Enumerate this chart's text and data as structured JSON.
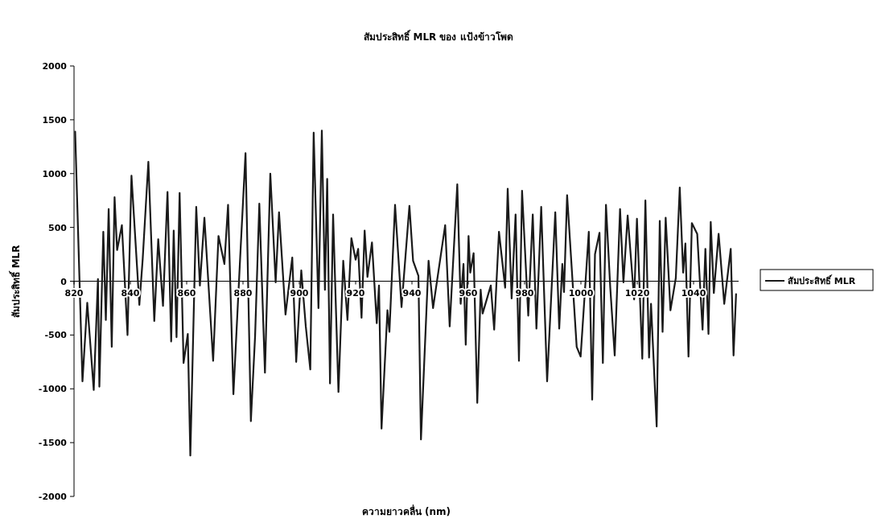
{
  "chart_data": {
    "type": "line",
    "title": "สัมประสิทธิ์ MLR ของ แป้งข้าวโพด",
    "xlabel": "ความยาวคลื่น (nm)",
    "ylabel": "สัมประสิทธิ์ MLR",
    "xlim": [
      820,
      1056
    ],
    "xticks": [
      820,
      840,
      860,
      880,
      900,
      920,
      940,
      960,
      980,
      1000,
      1020,
      1040
    ],
    "ylim": [
      -2000,
      2000
    ],
    "yticks": [
      -2000,
      -1500,
      -1000,
      -500,
      0,
      500,
      1000,
      1500,
      2000
    ],
    "legend": "right",
    "series": [
      {
        "name": "สัมประสิทธิ์ MLR",
        "color": "#1a1a1a",
        "x": [
          820.4,
          823,
          824.7,
          827,
          828.5,
          829,
          830.4,
          831.3,
          832.3,
          833.4,
          834.4,
          835.3,
          837,
          839,
          840.4,
          843.2,
          844.4,
          846.4,
          848.5,
          849.9,
          851.6,
          853.2,
          854.5,
          855.4,
          856.4,
          857.5,
          858.9,
          860.4,
          861.3,
          863.4,
          864.7,
          866.3,
          869.4,
          871.3,
          873.4,
          874.7,
          876.6,
          879,
          880.9,
          882.8,
          884.3,
          885.8,
          887.8,
          889.7,
          891.6,
          892.8,
          895.1,
          897.5,
          898.9,
          900.7,
          902.3,
          903.9,
          905.1,
          906.8,
          908,
          909.1,
          909.9,
          910.9,
          912,
          913.9,
          915.6,
          917.1,
          918.5,
          920,
          920.9,
          922.1,
          923.2,
          924.2,
          925.8,
          927.5,
          928.3,
          929.2,
          931.3,
          932,
          934,
          936.3,
          939.1,
          940.4,
          942.3,
          943.2,
          945.9,
          947.5,
          951.8,
          953.4,
          956.1,
          957.3,
          958.3,
          959.1,
          960.1,
          960.7,
          961.9,
          963.2,
          964.4,
          965.1,
          968,
          969.2,
          970.9,
          973.1,
          974,
          975.4,
          976.8,
          978,
          979.1,
          981.3,
          982.9,
          984.2,
          985.9,
          988,
          990.9,
          992.3,
          993.4,
          994,
          995.1,
          998.5,
          999.9,
          1002.8,
          1004,
          1005,
          1006.6,
          1007.8,
          1008.9,
          1010.4,
          1012,
          1013.9,
          1015.1,
          1016.6,
          1018.9,
          1019.9,
          1021.8,
          1022.9,
          1024.2,
          1024.9,
          1026.9,
          1028,
          1029,
          1030.1,
          1031.8,
          1033.7,
          1035.1,
          1036.3,
          1037.1,
          1038.2,
          1039.4,
          1041.3,
          1043.2,
          1044.2,
          1045.3,
          1046.1,
          1047.2,
          1048.9,
          1050.9,
          1053.2,
          1054.2,
          1055.1
        ],
        "values": [
          1390,
          -930,
          -200,
          -1010,
          20,
          -980,
          460,
          -360,
          670,
          -610,
          780,
          290,
          520,
          -500,
          980,
          -220,
          210,
          1110,
          -370,
          390,
          -230,
          830,
          -560,
          470,
          -520,
          820,
          -760,
          -490,
          -1620,
          690,
          -40,
          590,
          -740,
          420,
          160,
          710,
          -1050,
          220,
          1190,
          -1300,
          -510,
          720,
          -850,
          1000,
          -10,
          640,
          -310,
          220,
          -750,
          100,
          -420,
          -820,
          1380,
          -250,
          1400,
          -80,
          950,
          -950,
          620,
          -1030,
          190,
          -360,
          400,
          200,
          300,
          -340,
          470,
          40,
          360,
          -390,
          -40,
          -1370,
          -270,
          -470,
          710,
          -240,
          700,
          190,
          50,
          -1470,
          190,
          -250,
          520,
          -420,
          900,
          -210,
          160,
          -590,
          420,
          80,
          260,
          -1130,
          -80,
          -300,
          -40,
          -450,
          460,
          -60,
          860,
          -160,
          620,
          -740,
          840,
          -320,
          620,
          -440,
          690,
          -930,
          640,
          -440,
          160,
          -100,
          800,
          -610,
          -700,
          460,
          -1100,
          250,
          450,
          -760,
          710,
          -50,
          -690,
          670,
          -10,
          610,
          -170,
          580,
          -720,
          750,
          -710,
          -210,
          -1350,
          560,
          -470,
          590,
          -270,
          30,
          870,
          80,
          350,
          -700,
          540,
          440,
          -450,
          300,
          -490,
          550,
          -110,
          440,
          -210,
          300,
          -690,
          -120
        ]
      }
    ]
  }
}
